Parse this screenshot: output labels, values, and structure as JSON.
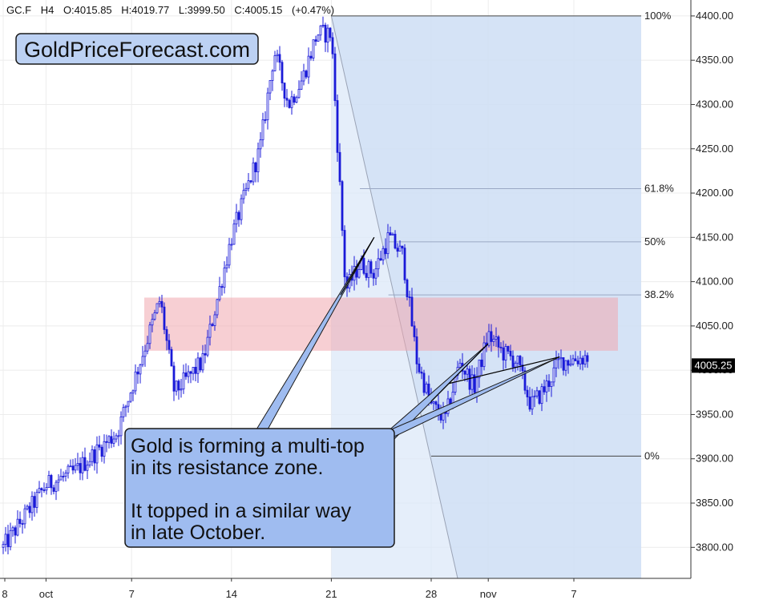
{
  "chart_data": {
    "type": "candlestick",
    "header": {
      "symbol": "GC.F",
      "timeframe": "H4",
      "open": "O:4015.85",
      "high": "H:4019.77",
      "low": "L:3999.50",
      "close": "C:4005.15",
      "change": "(+0.47%)"
    },
    "watermark": "GoldPriceForecast.com",
    "y_axis": {
      "range": [
        3765,
        4418
      ],
      "ticks": [
        "3800.00",
        "3850.00",
        "3900.00",
        "3950.00",
        "4000.00",
        "4050.00",
        "4100.00",
        "4150.00",
        "4200.00",
        "4250.00",
        "4300.00",
        "4350.00",
        "4400.00"
      ],
      "last_price": "4005.25"
    },
    "x_axis": {
      "ticks": [
        {
          "label": "8",
          "date": "2025-09-28"
        },
        {
          "label": "oct",
          "date": "2025-10-01"
        },
        {
          "label": "7",
          "date": "2025-10-07"
        },
        {
          "label": "14",
          "date": "2025-10-14"
        },
        {
          "label": "21",
          "date": "2025-10-21"
        },
        {
          "label": "28",
          "date": "2025-10-28"
        },
        {
          "label": "nov",
          "date": "2025-11-01"
        },
        {
          "label": "7",
          "date": "2025-11-07"
        }
      ]
    },
    "fib_levels": [
      {
        "label": "100%",
        "price": 4400
      },
      {
        "label": "61.8%",
        "price": 4205
      },
      {
        "label": "50%",
        "price": 4145
      },
      {
        "label": "38.2%",
        "price": 4085
      },
      {
        "label": "0%",
        "price": 3903
      }
    ],
    "resistance_zone": {
      "low": 4022,
      "high": 4082
    },
    "annotation": {
      "lines": [
        "Gold is forming a multi-top",
        "in its resistance zone.",
        "",
        "It topped in a similar way",
        "in late October."
      ]
    },
    "anchors": [
      {
        "date": "2025-09-28",
        "price": 3800
      },
      {
        "date": "2025-10-01",
        "price": 3870
      },
      {
        "date": "2025-10-03",
        "price": 3885
      },
      {
        "date": "2025-10-06",
        "price": 3930
      },
      {
        "date": "2025-10-08",
        "price": 4030
      },
      {
        "date": "2025-10-09",
        "price": 4080
      },
      {
        "date": "2025-10-10",
        "price": 3975
      },
      {
        "date": "2025-10-12",
        "price": 4010
      },
      {
        "date": "2025-10-14",
        "price": 4150
      },
      {
        "date": "2025-10-16",
        "price": 4250
      },
      {
        "date": "2025-10-17",
        "price": 4360
      },
      {
        "date": "2025-10-18",
        "price": 4300
      },
      {
        "date": "2025-10-19",
        "price": 4330
      },
      {
        "date": "2025-10-20",
        "price": 4380
      },
      {
        "date": "2025-10-21",
        "price": 4380
      },
      {
        "date": "2025-10-22",
        "price": 4090
      },
      {
        "date": "2025-10-23",
        "price": 4120
      },
      {
        "date": "2025-10-24",
        "price": 4110
      },
      {
        "date": "2025-10-25",
        "price": 4150
      },
      {
        "date": "2025-10-26",
        "price": 4130
      },
      {
        "date": "2025-10-27",
        "price": 4010
      },
      {
        "date": "2025-10-28",
        "price": 3960
      },
      {
        "date": "2025-10-29",
        "price": 3945
      },
      {
        "date": "2025-10-30",
        "price": 4010
      },
      {
        "date": "2025-10-31",
        "price": 3980
      },
      {
        "date": "2025-11-01",
        "price": 4040
      },
      {
        "date": "2025-11-02",
        "price": 4020
      },
      {
        "date": "2025-11-03",
        "price": 4010
      },
      {
        "date": "2025-11-04",
        "price": 3960
      },
      {
        "date": "2025-11-05",
        "price": 3980
      },
      {
        "date": "2025-11-06",
        "price": 4010
      },
      {
        "date": "2025-11-08",
        "price": 4015
      }
    ]
  }
}
